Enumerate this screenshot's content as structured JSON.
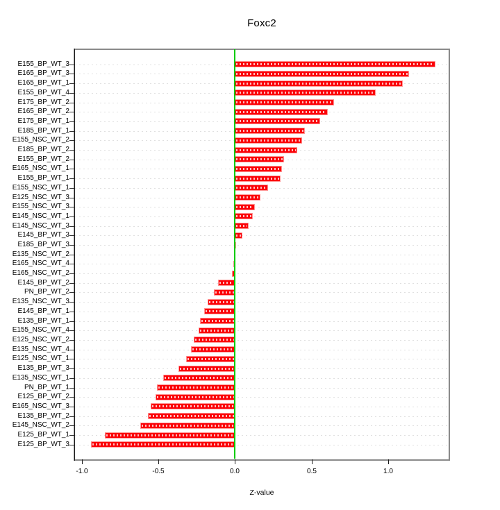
{
  "title": "Foxc2",
  "chart_data": {
    "type": "bar",
    "orientation": "horizontal",
    "title": "Foxc2",
    "xlabel": "Z-value",
    "categories": [
      "E155_BP_WT_3",
      "E165_BP_WT_3",
      "E165_BP_WT_1",
      "E155_BP_WT_4",
      "E175_BP_WT_2",
      "E165_BP_WT_2",
      "E175_BP_WT_1",
      "E185_BP_WT_1",
      "E155_NSC_WT_2",
      "E185_BP_WT_2",
      "E155_BP_WT_2",
      "E165_NSC_WT_1",
      "E155_BP_WT_1",
      "E155_NSC_WT_1",
      "E125_NSC_WT_3",
      "E155_NSC_WT_3",
      "E145_NSC_WT_1",
      "E145_NSC_WT_3",
      "E145_BP_WT_3",
      "E185_BP_WT_3",
      "E135_NSC_WT_2",
      "E165_NSC_WT_4",
      "E165_NSC_WT_2",
      "E145_BP_WT_2",
      "PN_BP_WT_2",
      "E135_NSC_WT_3",
      "E145_BP_WT_1",
      "E135_BP_WT_1",
      "E155_NSC_WT_4",
      "E125_NSC_WT_2",
      "E135_NSC_WT_4",
      "E125_NSC_WT_1",
      "E135_BP_WT_3",
      "E135_NSC_WT_1",
      "PN_BP_WT_1",
      "E125_BP_WT_2",
      "E165_NSC_WT_3",
      "E135_BP_WT_2",
      "E145_NSC_WT_2",
      "E125_BP_WT_1",
      "E125_BP_WT_3"
    ],
    "values": [
      1.31,
      1.14,
      1.1,
      0.92,
      0.65,
      0.61,
      0.56,
      0.46,
      0.44,
      0.41,
      0.32,
      0.31,
      0.3,
      0.22,
      0.17,
      0.13,
      0.12,
      0.09,
      0.05,
      0.005,
      0.0,
      -0.01,
      -0.02,
      -0.11,
      -0.14,
      -0.18,
      -0.2,
      -0.23,
      -0.24,
      -0.27,
      -0.29,
      -0.32,
      -0.37,
      -0.47,
      -0.51,
      -0.52,
      -0.55,
      -0.57,
      -0.62,
      -0.85,
      -0.94
    ],
    "xticks": [
      -1.0,
      -0.5,
      0.0,
      0.5,
      1.0
    ],
    "xtick_labels": [
      "-1.0",
      "-0.5",
      "0.0",
      "0.5",
      "1.0"
    ],
    "xlim": [
      -1.05,
      1.4
    ],
    "grid": true,
    "grid_style": "dashed",
    "zero_line": true,
    "legend": false,
    "colors": {
      "bar_fill": "#fb0007",
      "bar_border": "#ff9595",
      "bar_dash_overlay": "#ffffff",
      "zero_line": "#00cc00",
      "grid_line": "#e0e0e0",
      "frame": "#8a8a8a",
      "axis": "#000000"
    }
  }
}
